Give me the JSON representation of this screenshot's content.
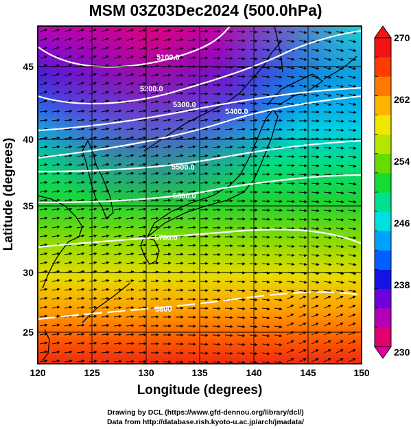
{
  "title": "MSM 03Z03Dec2024 (500.0hPa)",
  "axes": {
    "xlabel": "Longitude (degrees)",
    "ylabel": "Latitude  (degrees)",
    "xlim": [
      120,
      150
    ],
    "ylim": [
      22.5,
      48
    ],
    "xticks": [
      "120",
      "125",
      "130",
      "135",
      "140",
      "145",
      "150"
    ],
    "yticks": [
      "25",
      "30",
      "35",
      "40",
      "45"
    ]
  },
  "colorbar": {
    "min": 230,
    "max": 270,
    "tick_labels": [
      "270",
      "262",
      "254",
      "246",
      "238",
      "230"
    ],
    "colors": [
      "#e0006e",
      "#b400b4",
      "#6e00dc",
      "#1414e6",
      "#0060ff",
      "#00a0ff",
      "#00e0e0",
      "#00e08c",
      "#14dc32",
      "#64dc00",
      "#b4e600",
      "#f0e600",
      "#ffb400",
      "#ff7800",
      "#ff3c00",
      "#f01414"
    ]
  },
  "contours": {
    "labels": [
      "5100.0",
      "5200.0",
      "5300.0",
      "5400.0",
      "5500.0",
      "5600.0",
      "5700.0",
      "5800"
    ]
  },
  "credits": {
    "line1": "Drawing by DCL (https://www.gfd-dennou.org/library/dcl/)",
    "line2": "Data from http://database.rish.kyoto-u.ac.jp/arch/jmadata/"
  }
}
